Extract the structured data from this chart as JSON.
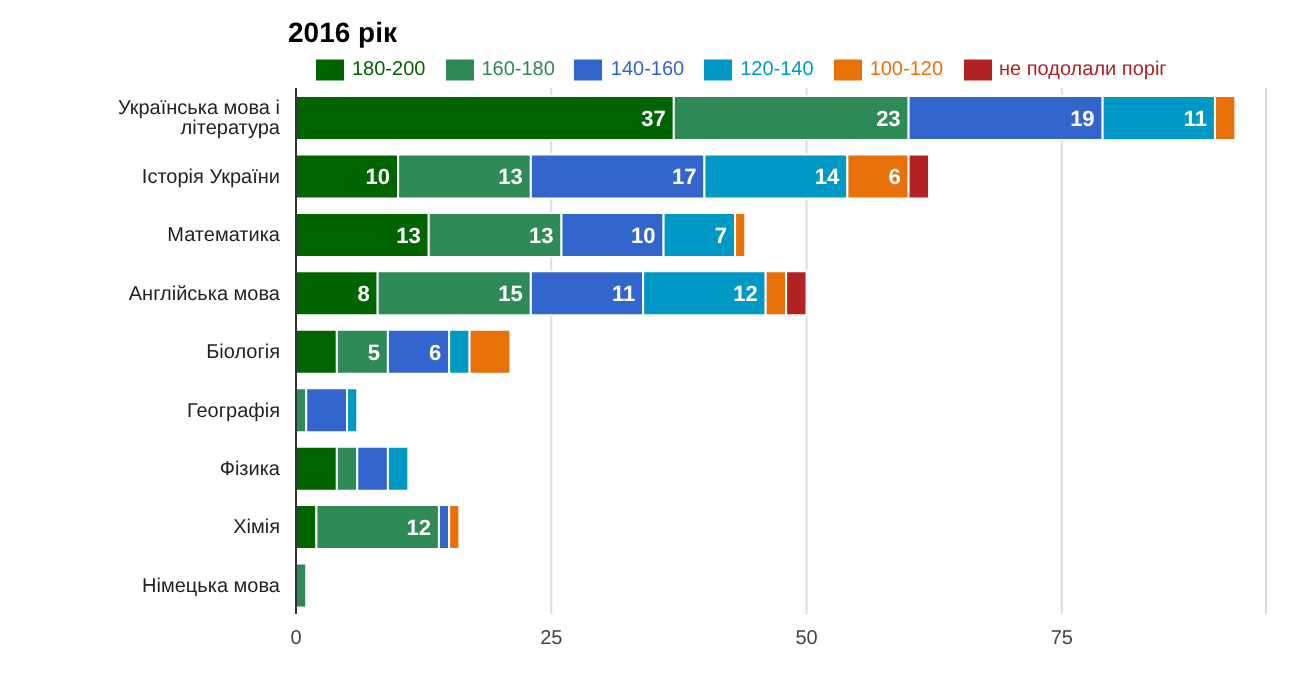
{
  "chart_data": {
    "type": "bar",
    "orientation": "horizontal",
    "stacked": true,
    "title": "2016 рік",
    "categories": [
      "Українська мова і література",
      "Історія України",
      "Математика",
      "Англійська мова",
      "Біологія",
      "Географія",
      "Фізика",
      "Хімія",
      "Німецька мова"
    ],
    "series": [
      {
        "name": "180-200",
        "color": "#006400",
        "values": [
          37,
          10,
          13,
          8,
          4,
          null,
          4,
          2,
          null
        ],
        "value_labels": [
          "37",
          "10",
          "13",
          "8",
          null,
          null,
          null,
          null,
          null
        ]
      },
      {
        "name": "160-180",
        "color": "#2e8b57",
        "values": [
          23,
          13,
          13,
          15,
          5,
          1,
          2,
          12,
          1
        ],
        "value_labels": [
          "23",
          "13",
          "13",
          "15",
          "5",
          null,
          null,
          "12",
          null
        ]
      },
      {
        "name": "140-160",
        "color": "#3366cc",
        "values": [
          19,
          17,
          10,
          11,
          6,
          4,
          3,
          1,
          null
        ],
        "value_labels": [
          "19",
          "17",
          "10",
          "11",
          "6",
          null,
          null,
          null,
          null
        ]
      },
      {
        "name": "120-140",
        "color": "#0099c6",
        "values": [
          11,
          14,
          7,
          12,
          2,
          1,
          2,
          null,
          null
        ],
        "value_labels": [
          "11",
          "14",
          "7",
          "12",
          null,
          null,
          null,
          null,
          null
        ]
      },
      {
        "name": "100-120",
        "color": "#e8710a",
        "values": [
          2,
          6,
          1,
          2,
          4,
          null,
          null,
          1,
          null
        ],
        "value_labels": [
          null,
          "6",
          null,
          null,
          null,
          null,
          null,
          null,
          null
        ]
      },
      {
        "name": "не подолали поріг",
        "color": "#b22222",
        "values": [
          null,
          2,
          null,
          2,
          null,
          null,
          null,
          null,
          null
        ],
        "value_labels": [
          null,
          null,
          null,
          null,
          null,
          null,
          null,
          null,
          null
        ]
      }
    ],
    "xlim": [
      0,
      95
    ],
    "xticks": [
      0,
      25,
      50,
      75
    ],
    "grid": "x",
    "legend": "top"
  }
}
